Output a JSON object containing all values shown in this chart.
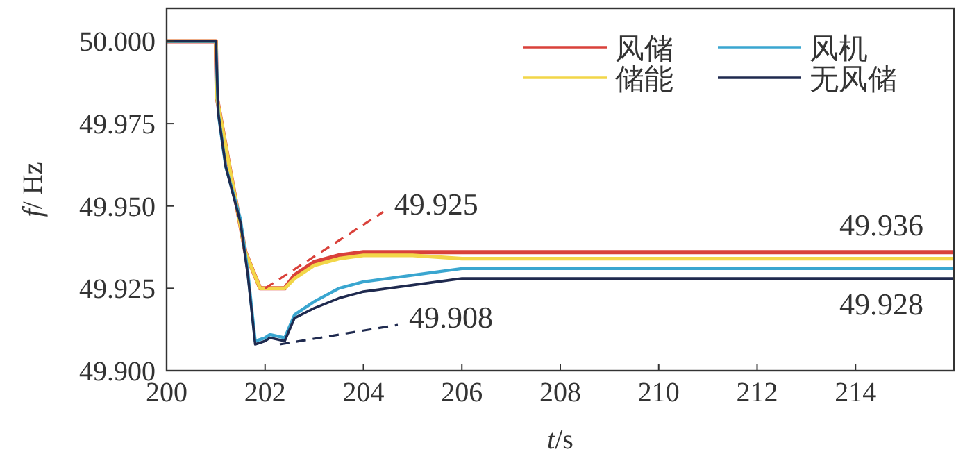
{
  "chart_data": {
    "type": "line",
    "xlabel": "t/s",
    "ylabel": "f/ Hz",
    "xlim": [
      200,
      216
    ],
    "xticks": [
      200,
      202,
      204,
      206,
      208,
      210,
      212,
      214
    ],
    "ylim": [
      49.9,
      50.01
    ],
    "yticks": [
      {
        "value": 49.9,
        "label": "49.900"
      },
      {
        "value": 49.925,
        "label": "49.925"
      },
      {
        "value": 49.95,
        "label": "49.950"
      },
      {
        "value": 49.975,
        "label": "49.975"
      },
      {
        "value": 50.0,
        "label": "50.000"
      }
    ],
    "legend": "top right",
    "grid": false,
    "line_style": "solid",
    "marker": "none",
    "series": [
      {
        "name": "风储",
        "color": "#d9413a",
        "x": [
          200,
          201,
          201.02,
          201.3,
          201.6,
          201.9,
          202.1,
          202.4,
          202.6,
          203,
          203.5,
          204,
          205,
          206,
          208,
          216
        ],
        "values": [
          50.0,
          50.0,
          49.983,
          49.96,
          49.936,
          49.925,
          49.925,
          49.925,
          49.929,
          49.933,
          49.935,
          49.936,
          49.936,
          49.936,
          49.936,
          49.936
        ]
      },
      {
        "name": "储能",
        "color": "#f2d648",
        "x": [
          200,
          201,
          201.02,
          201.3,
          201.6,
          201.9,
          202.1,
          202.4,
          202.6,
          203,
          203.5,
          204,
          205,
          206,
          208,
          216
        ],
        "values": [
          50.0,
          50.0,
          49.983,
          49.96,
          49.936,
          49.925,
          49.925,
          49.925,
          49.928,
          49.932,
          49.934,
          49.935,
          49.935,
          49.934,
          49.934,
          49.934
        ]
      },
      {
        "name": "风机",
        "color": "#3aa6d0",
        "x": [
          200,
          201,
          201.05,
          201.2,
          201.5,
          201.65,
          201.8,
          202,
          202.1,
          202.4,
          202.6,
          203,
          203.5,
          204,
          205,
          206,
          208,
          216
        ],
        "values": [
          50.0,
          50.0,
          49.978,
          49.962,
          49.946,
          49.93,
          49.909,
          49.91,
          49.911,
          49.91,
          49.917,
          49.921,
          49.925,
          49.927,
          49.929,
          49.931,
          49.931,
          49.931
        ]
      },
      {
        "name": "无风储",
        "color": "#1f2a4f",
        "x": [
          200,
          201,
          201.05,
          201.2,
          201.5,
          201.65,
          201.8,
          202,
          202.1,
          202.4,
          202.6,
          203,
          203.5,
          204,
          205,
          206,
          208,
          216
        ],
        "values": [
          50.0,
          50.0,
          49.978,
          49.962,
          49.945,
          49.929,
          49.908,
          49.909,
          49.91,
          49.909,
          49.916,
          49.919,
          49.922,
          49.924,
          49.926,
          49.928,
          49.928,
          49.928
        ]
      }
    ],
    "annotations": [
      {
        "text": "49.925",
        "x": 202,
        "y": 49.925
      },
      {
        "text": "49.908",
        "x": 202.3,
        "y": 49.908
      },
      {
        "text": "49.936",
        "x": 216,
        "y": 49.936
      },
      {
        "text": "49.928",
        "x": 216,
        "y": 49.928
      }
    ]
  }
}
